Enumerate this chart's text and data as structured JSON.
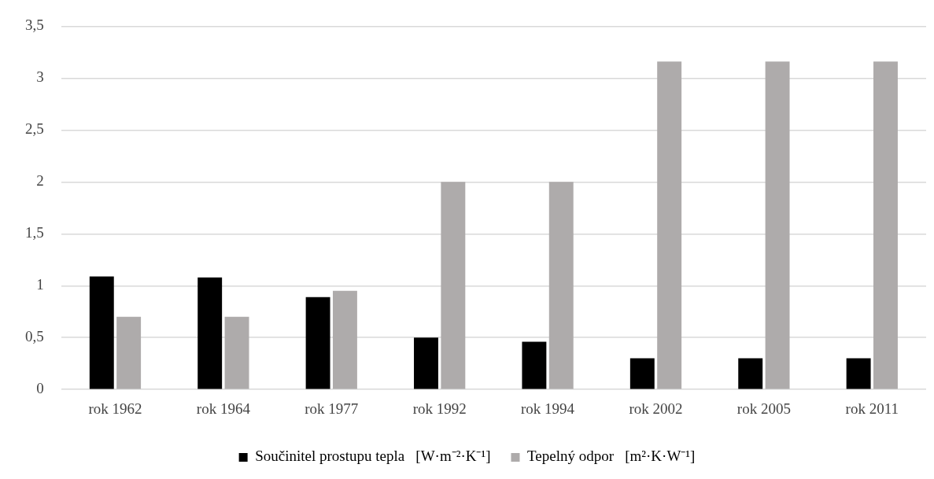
{
  "chart_data": {
    "type": "bar",
    "categories": [
      "rok 1962",
      "rok 1964",
      "rok 1977",
      "rok 1992",
      "rok 1994",
      "rok 2002",
      "rok 2005",
      "rok 2011"
    ],
    "series": [
      {
        "name": "Součinitel prostupu tepla   [W·m⁻²·K⁻¹]",
        "color": "#000000",
        "values": [
          1.09,
          1.08,
          0.89,
          0.5,
          0.46,
          0.3,
          0.3,
          0.3
        ]
      },
      {
        "name": "Tepelný odpor   [m²·K·W⁻¹]",
        "color": "#aeabab",
        "values": [
          0.7,
          0.7,
          0.95,
          2.0,
          2.0,
          3.16,
          3.16,
          3.16
        ]
      }
    ],
    "ylim": [
      0,
      3.5
    ],
    "yticks": [
      0,
      {
        "value": 0.5,
        "label": "0,5"
      },
      1,
      {
        "value": 1.5,
        "label": "1,5"
      },
      2,
      {
        "value": 2.5,
        "label": "2,5"
      },
      3,
      {
        "value": 3.5,
        "label": "3,5"
      }
    ],
    "grid": "y",
    "legend": "bottom"
  }
}
